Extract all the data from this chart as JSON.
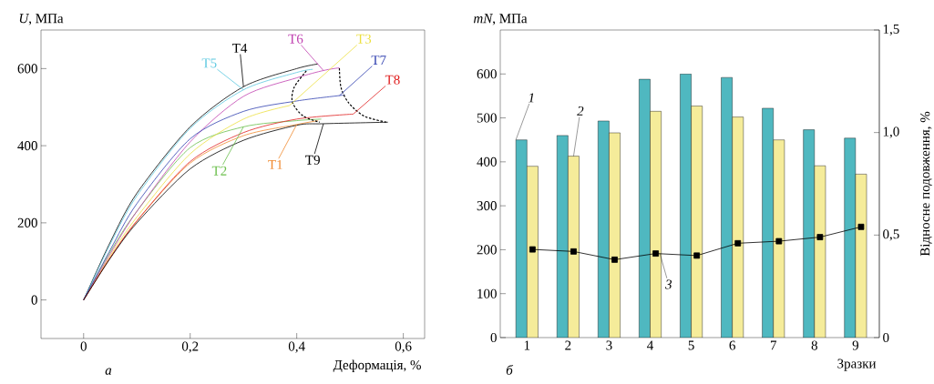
{
  "chart_data": [
    {
      "type": "line",
      "xlabel": "Деформація, %",
      "ylabel": "*U*, МПа",
      "xlim": [
        -0.08,
        0.64
      ],
      "ylim": [
        -100,
        700
      ],
      "xticks": [
        0,
        {
          "value": 0.2,
          "label": "0,2"
        },
        {
          "value": 0.4,
          "label": "0,4"
        },
        {
          "value": 0.6,
          "label": "0,6"
        }
      ],
      "yticks": [
        0,
        200,
        400,
        600
      ],
      "series": [
        {
          "name": "T1",
          "color": "#f08a30",
          "x": [
            0,
            0.05,
            0.1,
            0.2,
            0.3,
            0.4,
            0.44
          ],
          "values": [
            0,
            110,
            205,
            355,
            426,
            455,
            465
          ]
        },
        {
          "name": "T2",
          "color": "#6abf4b",
          "x": [
            0,
            0.05,
            0.1,
            0.2,
            0.3,
            0.4,
            0.446
          ],
          "values": [
            0,
            125,
            230,
            395,
            449,
            465,
            469
          ]
        },
        {
          "name": "T3",
          "color": "#ece040",
          "x": [
            0,
            0.05,
            0.1,
            0.2,
            0.3,
            0.386
          ],
          "values": [
            0,
            115,
            215,
            379,
            469,
            504
          ]
        },
        {
          "name": "T4",
          "color": "#000000",
          "x": [
            0,
            0.05,
            0.1,
            0.2,
            0.3,
            0.4,
            0.44
          ],
          "values": [
            0,
            150,
            277,
            449,
            553,
            600,
            612
          ]
        },
        {
          "name": "T5",
          "color": "#5bc8e0",
          "x": [
            0,
            0.05,
            0.1,
            0.2,
            0.3,
            0.4,
            0.43
          ],
          "values": [
            0,
            145,
            270,
            445,
            545,
            590,
            598
          ]
        },
        {
          "name": "T6",
          "color": "#c040b0",
          "x": [
            0,
            0.05,
            0.1,
            0.2,
            0.3,
            0.4,
            0.45,
            0.48
          ],
          "values": [
            0,
            120,
            230,
            410,
            528,
            576,
            595,
            602
          ]
        },
        {
          "name": "T7",
          "color": "#3040b0",
          "x": [
            0,
            0.05,
            0.1,
            0.2,
            0.3,
            0.4,
            0.48,
            0.49
          ],
          "values": [
            0,
            130,
            250,
            418,
            489,
            516,
            530,
            532
          ]
        },
        {
          "name": "T8",
          "color": "#e02020",
          "x": [
            0,
            0.05,
            0.1,
            0.2,
            0.3,
            0.4,
            0.506
          ],
          "values": [
            0,
            110,
            205,
            359,
            434,
            469,
            482
          ]
        },
        {
          "name": "T9",
          "color": "#000000",
          "x": [
            0,
            0.05,
            0.1,
            0.2,
            0.3,
            0.4,
            0.45,
            0.571
          ],
          "values": [
            0,
            108,
            200,
            340,
            414,
            453,
            457,
            461
          ]
        },
        {
          "color": "#000000",
          "line_style": "dotted",
          "x": [
            0.418,
            0.395,
            0.392,
            0.412,
            0.443
          ],
          "values": [
            594,
            551,
            512,
            477,
            461
          ]
        },
        {
          "color": "#000000",
          "line_style": "dotted",
          "x": [
            0.48,
            0.483,
            0.497,
            0.526,
            0.568
          ],
          "values": [
            601,
            551,
            512,
            477,
            461
          ]
        }
      ],
      "annotations": [
        "а"
      ]
    },
    {
      "type": "bar",
      "categories": [
        "1",
        "2",
        "3",
        "4",
        "5",
        "6",
        "7",
        "8",
        "9"
      ],
      "xlabel": "Зразки",
      "ylabel": "*mN*, МПа",
      "y2label": "Відносне подовження, %",
      "ylim": [
        0,
        700
      ],
      "yticks": [
        0,
        100,
        200,
        300,
        400,
        500,
        600
      ],
      "y2lim": [
        0,
        1.5
      ],
      "y2ticks": [
        0,
        {
          "value": 0.5,
          "label": "0,5"
        },
        {
          "value": 1.0,
          "label": "1,0"
        },
        {
          "value": 1.5,
          "label": "1,5"
        }
      ],
      "marker": "square",
      "series": [
        {
          "name": "1",
          "color": "#4fb8c0",
          "values": [
            450,
            460,
            493,
            588,
            600,
            592,
            522,
            473,
            454
          ]
        },
        {
          "name": "2",
          "color": "#f5ec9a",
          "values": [
            390,
            413,
            466,
            515,
            527,
            502,
            450,
            391,
            372
          ]
        },
        {
          "name": "3",
          "type": "line",
          "axis": "y2",
          "color": "#000000",
          "values": [
            0.43,
            0.42,
            0.38,
            0.41,
            0.4,
            0.46,
            0.47,
            0.49,
            0.54
          ]
        }
      ],
      "annotations": [
        "б"
      ]
    }
  ]
}
